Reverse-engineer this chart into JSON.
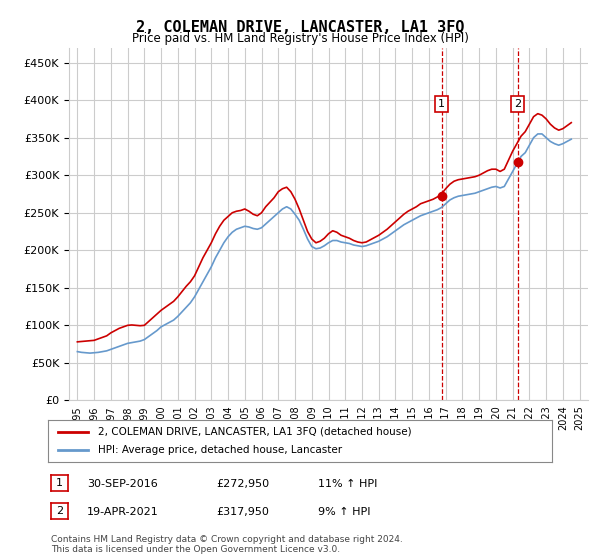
{
  "title": "2, COLEMAN DRIVE, LANCASTER, LA1 3FQ",
  "subtitle": "Price paid vs. HM Land Registry's House Price Index (HPI)",
  "legend_line1": "2, COLEMAN DRIVE, LANCASTER, LA1 3FQ (detached house)",
  "legend_line2": "HPI: Average price, detached house, Lancaster",
  "footnote1": "Contains HM Land Registry data © Crown copyright and database right 2024.",
  "footnote2": "This data is licensed under the Open Government Licence v3.0.",
  "annotation1_label": "1",
  "annotation1_date": "30-SEP-2016",
  "annotation1_price": "£272,950",
  "annotation1_hpi": "11% ↑ HPI",
  "annotation2_label": "2",
  "annotation2_date": "19-APR-2021",
  "annotation2_price": "£317,950",
  "annotation2_hpi": "9% ↑ HPI",
  "vline1_year": 2016.75,
  "vline2_year": 2021.29,
  "price_color": "#cc0000",
  "hpi_color": "#6699cc",
  "annotation_box_color": "#cc0000",
  "grid_color": "#cccccc",
  "bg_color": "#ffffff",
  "ylim": [
    0,
    470000
  ],
  "yticks": [
    0,
    50000,
    100000,
    150000,
    200000,
    250000,
    300000,
    350000,
    400000,
    450000
  ],
  "xlim_start": 1994.5,
  "xlim_end": 2025.5,
  "hpi_data": {
    "years": [
      1995.0,
      1995.25,
      1995.5,
      1995.75,
      1996.0,
      1996.25,
      1996.5,
      1996.75,
      1997.0,
      1997.25,
      1997.5,
      1997.75,
      1998.0,
      1998.25,
      1998.5,
      1998.75,
      1999.0,
      1999.25,
      1999.5,
      1999.75,
      2000.0,
      2000.25,
      2000.5,
      2000.75,
      2001.0,
      2001.25,
      2001.5,
      2001.75,
      2002.0,
      2002.25,
      2002.5,
      2002.75,
      2003.0,
      2003.25,
      2003.5,
      2003.75,
      2004.0,
      2004.25,
      2004.5,
      2004.75,
      2005.0,
      2005.25,
      2005.5,
      2005.75,
      2006.0,
      2006.25,
      2006.5,
      2006.75,
      2007.0,
      2007.25,
      2007.5,
      2007.75,
      2008.0,
      2008.25,
      2008.5,
      2008.75,
      2009.0,
      2009.25,
      2009.5,
      2009.75,
      2010.0,
      2010.25,
      2010.5,
      2010.75,
      2011.0,
      2011.25,
      2011.5,
      2011.75,
      2012.0,
      2012.25,
      2012.5,
      2012.75,
      2013.0,
      2013.25,
      2013.5,
      2013.75,
      2014.0,
      2014.25,
      2014.5,
      2014.75,
      2015.0,
      2015.25,
      2015.5,
      2015.75,
      2016.0,
      2016.25,
      2016.5,
      2016.75,
      2017.0,
      2017.25,
      2017.5,
      2017.75,
      2018.0,
      2018.25,
      2018.5,
      2018.75,
      2019.0,
      2019.25,
      2019.5,
      2019.75,
      2020.0,
      2020.25,
      2020.5,
      2020.75,
      2021.0,
      2021.25,
      2021.5,
      2021.75,
      2022.0,
      2022.25,
      2022.5,
      2022.75,
      2023.0,
      2023.25,
      2023.5,
      2023.75,
      2024.0,
      2024.25,
      2024.5
    ],
    "values": [
      65000,
      64000,
      63500,
      63000,
      63500,
      64000,
      65000,
      66000,
      68000,
      70000,
      72000,
      74000,
      76000,
      77000,
      78000,
      79000,
      81000,
      85000,
      89000,
      93000,
      98000,
      101000,
      104000,
      107000,
      112000,
      118000,
      124000,
      130000,
      138000,
      148000,
      158000,
      168000,
      178000,
      190000,
      200000,
      210000,
      218000,
      224000,
      228000,
      230000,
      232000,
      231000,
      229000,
      228000,
      230000,
      235000,
      240000,
      245000,
      250000,
      255000,
      258000,
      255000,
      248000,
      240000,
      228000,
      215000,
      205000,
      202000,
      203000,
      206000,
      210000,
      213000,
      213000,
      211000,
      210000,
      209000,
      207000,
      206000,
      205000,
      206000,
      208000,
      210000,
      212000,
      215000,
      218000,
      222000,
      226000,
      230000,
      234000,
      237000,
      240000,
      243000,
      246000,
      248000,
      250000,
      252000,
      254000,
      257000,
      262000,
      267000,
      270000,
      272000,
      273000,
      274000,
      275000,
      276000,
      278000,
      280000,
      282000,
      284000,
      285000,
      283000,
      285000,
      295000,
      305000,
      315000,
      325000,
      330000,
      340000,
      350000,
      355000,
      355000,
      350000,
      345000,
      342000,
      340000,
      342000,
      345000,
      348000
    ]
  },
  "price_line_data": {
    "years": [
      1995.0,
      1995.25,
      1995.5,
      1995.75,
      1996.0,
      1996.25,
      1996.5,
      1996.75,
      1997.0,
      1997.25,
      1997.5,
      1997.75,
      1998.0,
      1998.25,
      1998.5,
      1998.75,
      1999.0,
      1999.25,
      1999.5,
      1999.75,
      2000.0,
      2000.25,
      2000.5,
      2000.75,
      2001.0,
      2001.25,
      2001.5,
      2001.75,
      2002.0,
      2002.25,
      2002.5,
      2002.75,
      2003.0,
      2003.25,
      2003.5,
      2003.75,
      2004.0,
      2004.25,
      2004.5,
      2004.75,
      2005.0,
      2005.25,
      2005.5,
      2005.75,
      2006.0,
      2006.25,
      2006.5,
      2006.75,
      2007.0,
      2007.25,
      2007.5,
      2007.75,
      2008.0,
      2008.25,
      2008.5,
      2008.75,
      2009.0,
      2009.25,
      2009.5,
      2009.75,
      2010.0,
      2010.25,
      2010.5,
      2010.75,
      2011.0,
      2011.25,
      2011.5,
      2011.75,
      2012.0,
      2012.25,
      2012.5,
      2012.75,
      2013.0,
      2013.25,
      2013.5,
      2013.75,
      2014.0,
      2014.25,
      2014.5,
      2014.75,
      2015.0,
      2015.25,
      2015.5,
      2015.75,
      2016.0,
      2016.25,
      2016.5,
      2016.75,
      2017.0,
      2017.25,
      2017.5,
      2017.75,
      2018.0,
      2018.25,
      2018.5,
      2018.75,
      2019.0,
      2019.25,
      2019.5,
      2019.75,
      2020.0,
      2020.25,
      2020.5,
      2020.75,
      2021.0,
      2021.25,
      2021.5,
      2021.75,
      2022.0,
      2022.25,
      2022.5,
      2022.75,
      2023.0,
      2023.25,
      2023.5,
      2023.75,
      2024.0,
      2024.25,
      2024.5
    ],
    "values": [
      78000,
      78500,
      79000,
      79500,
      80000,
      82000,
      84000,
      86000,
      90000,
      93000,
      96000,
      98000,
      100000,
      100500,
      100000,
      99500,
      100000,
      105000,
      110000,
      115000,
      120000,
      124000,
      128000,
      132000,
      138000,
      145000,
      152000,
      158000,
      166000,
      178000,
      190000,
      200000,
      210000,
      222000,
      232000,
      240000,
      245000,
      250000,
      252000,
      253000,
      255000,
      252000,
      248000,
      246000,
      250000,
      258000,
      264000,
      270000,
      278000,
      282000,
      284000,
      278000,
      268000,
      255000,
      240000,
      225000,
      215000,
      210000,
      212000,
      216000,
      222000,
      226000,
      224000,
      220000,
      218000,
      216000,
      213000,
      211000,
      210000,
      211000,
      214000,
      217000,
      220000,
      224000,
      228000,
      233000,
      238000,
      243000,
      248000,
      252000,
      255000,
      258000,
      262000,
      264000,
      266000,
      268000,
      271000,
      275000,
      282000,
      288000,
      292000,
      294000,
      295000,
      296000,
      297000,
      298000,
      300000,
      303000,
      306000,
      308000,
      308000,
      305000,
      308000,
      320000,
      332000,
      342000,
      352000,
      358000,
      368000,
      378000,
      382000,
      380000,
      375000,
      368000,
      363000,
      360000,
      362000,
      366000,
      370000
    ]
  },
  "sale_points": [
    {
      "year": 2016.75,
      "price": 272950,
      "label": "1"
    },
    {
      "year": 2021.29,
      "price": 317950,
      "label": "2"
    }
  ],
  "xtick_years": [
    1995,
    1996,
    1997,
    1998,
    1999,
    2000,
    2001,
    2002,
    2003,
    2004,
    2005,
    2006,
    2007,
    2008,
    2009,
    2010,
    2011,
    2012,
    2013,
    2014,
    2015,
    2016,
    2017,
    2018,
    2019,
    2020,
    2021,
    2022,
    2023,
    2024,
    2025
  ]
}
